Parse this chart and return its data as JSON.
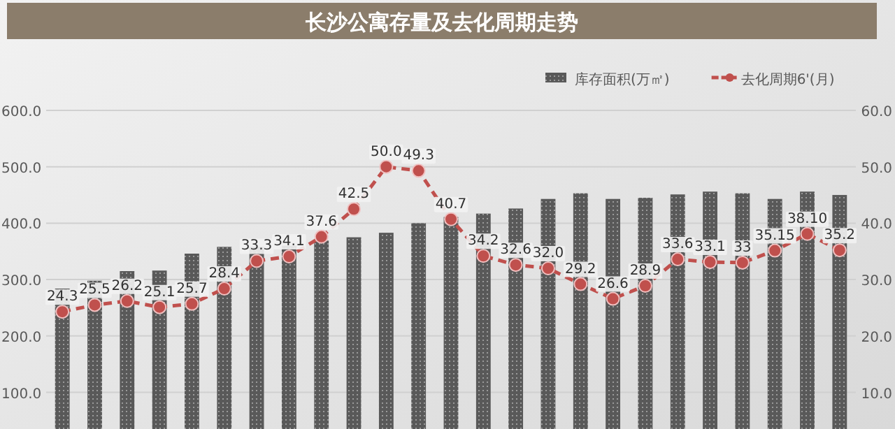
{
  "chart_data": {
    "type": "bar",
    "title": "长沙公寓存量及去化周期走势",
    "categories": [
      null,
      null,
      null,
      null,
      null,
      null,
      null,
      null,
      null,
      null,
      null,
      null,
      null,
      null,
      null,
      null,
      null,
      null,
      null,
      null,
      null,
      null,
      null,
      null,
      null
    ],
    "series": [
      {
        "name": "库存面积(万㎡)",
        "color": "#595959",
        "values": [
          284,
          298,
          315,
          316,
          346,
          358,
          358,
          360,
          369,
          375,
          383,
          400,
          411,
          417,
          426,
          443,
          453,
          443,
          445,
          451,
          456,
          453,
          443,
          456,
          450
        ]
      },
      {
        "name": "去化周期6'(月)",
        "type": "line",
        "axis": "y2",
        "color": "#c0504d",
        "values": [
          24.3,
          25.5,
          26.2,
          25.1,
          25.7,
          28.4,
          33.3,
          34.1,
          37.6,
          42.5,
          50.0,
          49.3,
          40.7,
          34.2,
          32.6,
          32.0,
          29.2,
          26.6,
          28.9,
          33.6,
          33.1,
          33,
          35.15,
          38.1,
          35.2
        ],
        "value_labels": [
          "24.3",
          "25.5",
          "26.2",
          "25.1",
          "25.7",
          "28.4",
          "33.3",
          "34.1",
          "37.6",
          "42.5",
          "50.0",
          "49.3",
          "40.7",
          "34.2",
          "32.6",
          "32.0",
          "29.2",
          "26.6",
          "28.9",
          "33.6",
          "33.1",
          "33",
          "35.15",
          "38.10",
          "35.2"
        ]
      }
    ],
    "marker": "circle",
    "line_style": "dashed",
    "ylim": [
      35,
      600
    ],
    "yticks": [
      {
        "value": 100,
        "label": "100.0"
      },
      {
        "value": 200,
        "label": "200.0"
      },
      {
        "value": 300,
        "label": "300.0"
      },
      {
        "value": 400,
        "label": "400.0"
      },
      {
        "value": 500,
        "label": "500.0"
      },
      {
        "value": 600,
        "label": "600.0"
      }
    ],
    "y2lim": [
      3.5,
      60
    ],
    "y2ticks": [
      {
        "value": 10,
        "label": "10.0"
      },
      {
        "value": 20,
        "label": "20.0"
      },
      {
        "value": 30,
        "label": "30.0"
      },
      {
        "value": 40,
        "label": "40.0"
      },
      {
        "value": 50,
        "label": "50.0"
      },
      {
        "value": 60,
        "label": "60.0"
      }
    ],
    "grid": "y",
    "legend": "top right"
  }
}
